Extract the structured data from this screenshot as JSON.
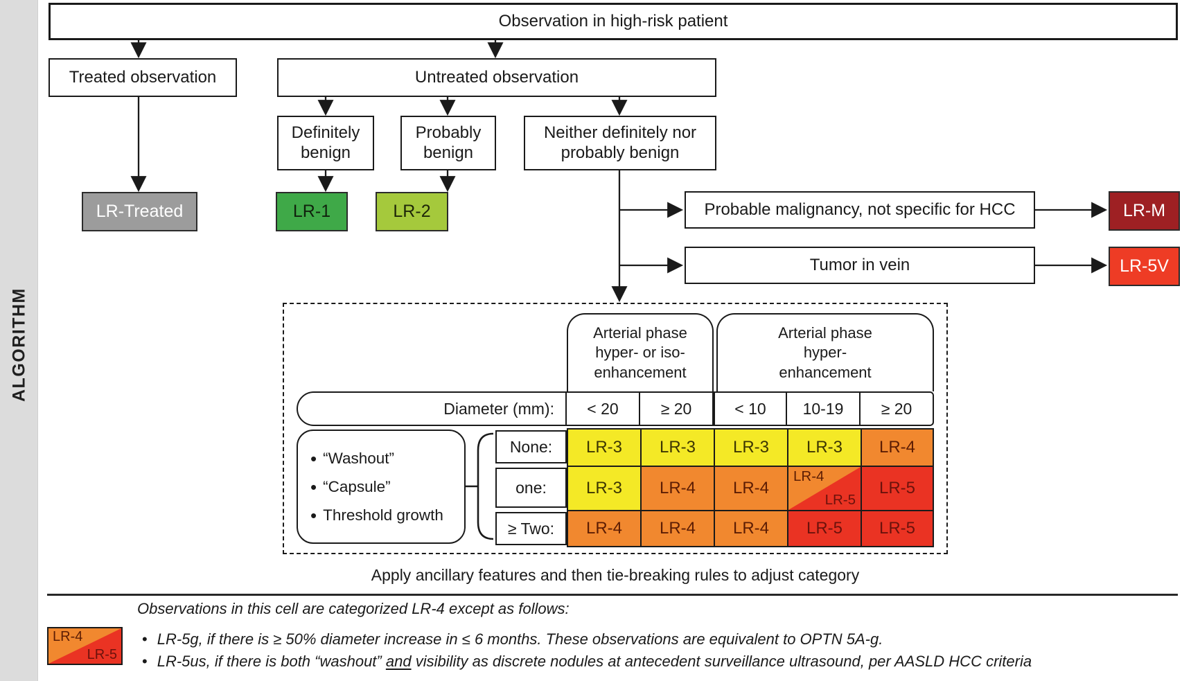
{
  "sidebar": {
    "label": "ALGORITHM"
  },
  "flowchart": {
    "root": "Observation in high-risk patient",
    "treated": "Treated observation",
    "untreated": "Untreated observation",
    "definitely_benign": "Definitely\nbenign",
    "probably_benign": "Probably\nbenign",
    "neither_benign": "Neither definitely nor\nprobably benign",
    "probable_malignancy": "Probable malignancy, not specific for HCC",
    "tumor_in_vein": "Tumor in vein",
    "lr_treated": "LR-Treated",
    "lr1": "LR-1",
    "lr2": "LR-2",
    "lrm": "LR-M",
    "lr5v": "LR-5V"
  },
  "table": {
    "header_groups": [
      {
        "label": "Arterial phase hyper- or iso-enhancement",
        "display": "Arterial phase\nhyper- or iso-\nenhancement",
        "cols": 2
      },
      {
        "label": "Arterial phase hyper-enhancement",
        "display": "Arterial phase\nhyper-\nenhancement",
        "cols": 3
      }
    ],
    "diameter_label": "Diameter (mm):",
    "diameter_cols": [
      "< 20",
      "≥ 20",
      "< 10",
      "10-19",
      "≥ 20"
    ],
    "features": [
      "“Washout”",
      "“Capsule”",
      "Threshold growth"
    ],
    "row_labels": [
      "None:",
      "one:",
      "≥ Two:"
    ],
    "rows": [
      [
        "LR-3",
        "LR-3",
        "LR-3",
        "LR-3",
        "LR-4"
      ],
      [
        "LR-3",
        "LR-4",
        "LR-4",
        "LR-4/LR-5",
        "LR-5"
      ],
      [
        "LR-4",
        "LR-4",
        "LR-4",
        "LR-5",
        "LR-5"
      ]
    ],
    "cell_colors": [
      [
        "yellow",
        "yellow",
        "yellow",
        "yellow",
        "orange"
      ],
      [
        "yellow",
        "orange",
        "orange",
        "split",
        "red"
      ],
      [
        "orange",
        "orange",
        "orange",
        "red",
        "red"
      ]
    ],
    "split_cell": {
      "top_label": "LR-4",
      "bottom_label": "LR-5"
    }
  },
  "footer": {
    "apply_note": "Apply ancillary features and then tie-breaking rules to adjust category",
    "legend": {
      "top_label": "LR-4",
      "bottom_label": "LR-5"
    },
    "intro": "Observations in this cell are categorized LR-4 except as follows:",
    "bullet1": "LR-5g, if there is ≥ 50% diameter increase in ≤ 6 months. These observations are equivalent to OPTN 5A-g.",
    "bullet2_pre": "LR-5us, if there is both “washout” ",
    "bullet2_underlined": "and",
    "bullet2_post": " visibility as discrete nodules at antecedent surveillance ultrasound, per AASLD HCC criteria"
  },
  "colors": {
    "yellow": "#f4e926",
    "orange": "#f1882f",
    "red": "#ea3323",
    "green": "#3fa948",
    "light_green": "#a5c93c",
    "dark_red": "#9e2023",
    "bright_red": "#ee3c25",
    "gray": "#9c9c9c",
    "yellow_text": "#3c3603",
    "orange_text": "#5c1d04",
    "red_text": "#6b120c"
  }
}
